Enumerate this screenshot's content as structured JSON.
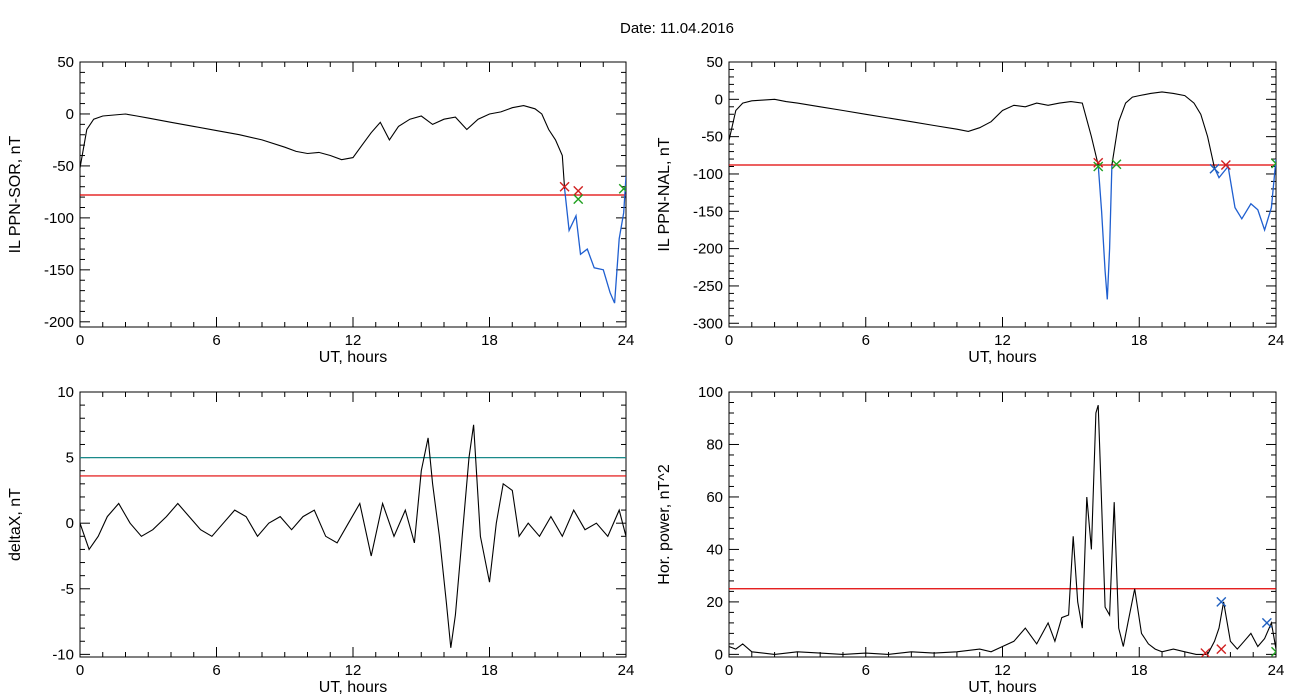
{
  "figure": {
    "title": "Date:  11.04.2016"
  },
  "colors": {
    "line": "#000000",
    "threshold": "#e00000",
    "highlight": "#1f5fd0",
    "threshold2": "#1a8a8a",
    "marker_red": "#d02020",
    "marker_green": "#20a020",
    "marker_blue": "#2060c0"
  },
  "chart_data": [
    {
      "type": "line",
      "xlabel": "UT, hours",
      "ylabel": "IL PPN-SOR, nT",
      "xlim": [
        0,
        24
      ],
      "ylim": [
        -205,
        50
      ],
      "xticks": [
        0,
        6,
        12,
        18,
        24
      ],
      "yticks": [
        50,
        0,
        -50,
        -100,
        -150,
        -200
      ],
      "grid": false,
      "series": [
        {
          "x": [
            0,
            0.3,
            0.6,
            1,
            1.5,
            2,
            2.5,
            3,
            4,
            5,
            6,
            7,
            8,
            9,
            9.5,
            10,
            10.5,
            11,
            11.5,
            12,
            12.4,
            12.8,
            13.2,
            13.6,
            14,
            14.5,
            15,
            15.5,
            16,
            16.5,
            17,
            17.5,
            18,
            18.5,
            19,
            19.5,
            20,
            20.3,
            20.6,
            20.9,
            21.2,
            21.3
          ],
          "y": [
            -52,
            -15,
            -5,
            -2,
            -1,
            0,
            -2,
            -4,
            -8,
            -12,
            -16,
            -20,
            -25,
            -32,
            -36,
            -38,
            -37,
            -40,
            -44,
            -42,
            -30,
            -18,
            -8,
            -25,
            -12,
            -5,
            -2,
            -10,
            -5,
            -3,
            -15,
            -5,
            0,
            2,
            6,
            8,
            5,
            0,
            -15,
            -25,
            -40,
            -72
          ]
        }
      ],
      "highlight_series": {
        "x": [
          21.3,
          21.5,
          21.8,
          22,
          22.3,
          22.6,
          23,
          23.3,
          23.5,
          23.7,
          23.9,
          24
        ],
        "y": [
          -72,
          -112,
          -98,
          -135,
          -130,
          -148,
          -150,
          -172,
          -182,
          -120,
          -95,
          -60
        ]
      },
      "threshold": -78,
      "markers": [
        {
          "x": 21.3,
          "y": -70,
          "color": "red"
        },
        {
          "x": 21.9,
          "y": -74,
          "color": "red"
        },
        {
          "x": 21.9,
          "y": -82,
          "color": "green"
        },
        {
          "x": 23.9,
          "y": -72,
          "color": "green"
        }
      ]
    },
    {
      "type": "line",
      "xlabel": "UT, hours",
      "ylabel": "IL PPN-NAL, nT",
      "xlim": [
        0,
        24
      ],
      "ylim": [
        -305,
        50
      ],
      "xticks": [
        0,
        6,
        12,
        18,
        24
      ],
      "yticks": [
        50,
        0,
        -50,
        -100,
        -150,
        -200,
        -250,
        -300
      ],
      "grid": false,
      "series": [
        {
          "x": [
            0,
            0.3,
            0.6,
            1,
            1.5,
            2,
            2.5,
            3,
            4,
            5,
            6,
            7,
            8,
            9,
            10,
            10.5,
            11,
            11.5,
            12,
            12.5,
            13,
            13.5,
            14,
            14.5,
            15,
            15.5,
            15.9,
            16.2
          ],
          "y": [
            -55,
            -15,
            -5,
            -2,
            -1,
            0,
            -3,
            -5,
            -10,
            -15,
            -20,
            -25,
            -30,
            -35,
            -40,
            -43,
            -38,
            -30,
            -15,
            -8,
            -10,
            -5,
            -8,
            -5,
            -3,
            -5,
            -50,
            -88
          ]
        },
        {
          "x": [
            16.8,
            17.1,
            17.4,
            17.7,
            18,
            18.5,
            19,
            19.5,
            20,
            20.4,
            20.7,
            21,
            21.3
          ],
          "y": [
            -88,
            -30,
            -5,
            3,
            5,
            8,
            10,
            8,
            5,
            -5,
            -20,
            -50,
            -92
          ]
        }
      ],
      "highlight_series": [
        {
          "x": [
            16.2,
            16.35,
            16.5,
            16.6,
            16.7,
            16.8
          ],
          "y": [
            -88,
            -150,
            -230,
            -268,
            -200,
            -88
          ]
        },
        {
          "x": [
            21.3,
            21.5,
            21.9,
            22.2,
            22.5,
            22.9,
            23.2,
            23.5,
            23.8,
            24
          ],
          "y": [
            -92,
            -105,
            -90,
            -145,
            -160,
            -140,
            -148,
            -175,
            -145,
            -80
          ]
        }
      ],
      "threshold": -88,
      "markers": [
        {
          "x": 16.2,
          "y": -85,
          "color": "red"
        },
        {
          "x": 16.2,
          "y": -90,
          "color": "green"
        },
        {
          "x": 17,
          "y": -87,
          "color": "green"
        },
        {
          "x": 21.3,
          "y": -93,
          "color": "blue"
        },
        {
          "x": 21.8,
          "y": -88,
          "color": "red"
        },
        {
          "x": 24,
          "y": -86,
          "color": "green"
        }
      ]
    },
    {
      "type": "line",
      "xlabel": "UT, hours",
      "ylabel": "deltaX, nT",
      "xlim": [
        0,
        24
      ],
      "ylim": [
        -10.2,
        10
      ],
      "xticks": [
        0,
        6,
        12,
        18,
        24
      ],
      "yticks": [
        10,
        5,
        0,
        -5,
        -10
      ],
      "grid": false,
      "series": [
        {
          "x": [
            0,
            0.4,
            0.8,
            1.2,
            1.7,
            2.2,
            2.7,
            3.2,
            3.8,
            4.3,
            4.8,
            5.3,
            5.8,
            6.3,
            6.8,
            7.3,
            7.8,
            8.3,
            8.8,
            9.3,
            9.8,
            10.3,
            10.8,
            11.3,
            11.8,
            12.3,
            12.8,
            13.3,
            13.8,
            14.3,
            14.7,
            15,
            15.3,
            15.5,
            15.8,
            16.1,
            16.3,
            16.5,
            16.8,
            17.1,
            17.3,
            17.6,
            18,
            18.3,
            18.6,
            19,
            19.3,
            19.7,
            20.2,
            20.7,
            21.2,
            21.7,
            22.2,
            22.7,
            23.2,
            23.7,
            24
          ],
          "y": [
            0,
            -2,
            -1,
            0.5,
            1.5,
            0,
            -1,
            -0.5,
            0.5,
            1.5,
            0.5,
            -0.5,
            -1,
            0,
            1,
            0.5,
            -1,
            0,
            0.5,
            -0.5,
            0.5,
            1,
            -1,
            -1.5,
            0,
            1.5,
            -2.5,
            1.5,
            -1,
            1,
            -1.5,
            4,
            6.5,
            3,
            -1,
            -6,
            -9.5,
            -7,
            -1,
            5,
            7.5,
            -1,
            -4.5,
            0,
            3,
            2.5,
            -1,
            0,
            -1,
            0.5,
            -1,
            1,
            -0.5,
            0,
            -1,
            1,
            -1
          ]
        }
      ],
      "threshold": 3.6,
      "threshold2": 5
    },
    {
      "type": "line",
      "xlabel": "UT, hours",
      "ylabel": "Hor. power, nT^2",
      "xlim": [
        0,
        24
      ],
      "ylim": [
        -1,
        100
      ],
      "xticks": [
        0,
        6,
        12,
        18,
        24
      ],
      "yticks": [
        100,
        80,
        60,
        40,
        20,
        0
      ],
      "grid": false,
      "series": [
        {
          "x": [
            0,
            0.3,
            0.6,
            1,
            2,
            3,
            4,
            5,
            6,
            7,
            8,
            9,
            10,
            11,
            11.5,
            12,
            12.5,
            13,
            13.5,
            14,
            14.3,
            14.6,
            14.9,
            15.1,
            15.3,
            15.5,
            15.7,
            15.9,
            16.1,
            16.2,
            16.3,
            16.5,
            16.7,
            16.9,
            17.1,
            17.3,
            17.5,
            17.8,
            18.1,
            18.4,
            18.7,
            19,
            19.5,
            20,
            20.5,
            21,
            21.3,
            21.5,
            21.7,
            22,
            22.3,
            22.6,
            22.9,
            23.2,
            23.5,
            23.8,
            24
          ],
          "y": [
            3,
            2,
            4,
            1,
            0,
            1,
            0.5,
            0,
            0.5,
            0,
            1,
            0.5,
            1,
            2,
            1,
            3,
            5,
            10,
            4,
            12,
            5,
            14,
            15,
            45,
            20,
            10,
            60,
            40,
            92,
            95,
            70,
            18,
            15,
            58,
            10,
            3,
            12,
            25,
            8,
            4,
            2,
            1,
            2,
            1,
            0,
            0,
            5,
            10,
            20,
            5,
            2,
            5,
            8,
            3,
            6,
            12,
            2
          ]
        }
      ],
      "threshold": 25,
      "markers": [
        {
          "x": 20.9,
          "y": 0.5,
          "color": "red"
        },
        {
          "x": 21.6,
          "y": 2,
          "color": "red"
        },
        {
          "x": 21.6,
          "y": 20,
          "color": "blue"
        },
        {
          "x": 23.6,
          "y": 12,
          "color": "blue"
        },
        {
          "x": 24,
          "y": 1,
          "color": "green"
        }
      ]
    }
  ]
}
